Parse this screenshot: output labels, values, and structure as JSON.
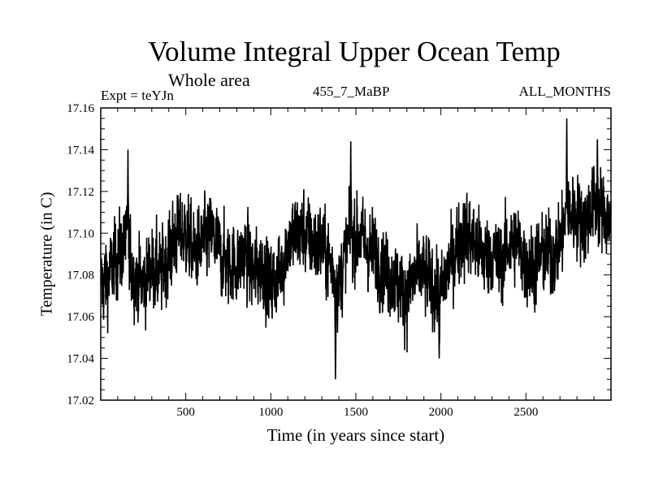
{
  "chart_data": {
    "type": "line",
    "title": "Volume Integral Upper Ocean Temp",
    "subtitle": "Whole area",
    "annotations": {
      "left": "Expt = teYJn",
      "center": "455_7_MaBP",
      "right": "ALL_MONTHS"
    },
    "xlabel": "Time (in years since start)",
    "ylabel": "Temperature (in C)",
    "xlim": [
      0,
      3000
    ],
    "ylim": [
      17.02,
      17.16
    ],
    "xticks": [
      500,
      1000,
      1500,
      2000,
      2500
    ],
    "xtick_labels": [
      "500",
      "1000",
      "1500",
      "2000",
      "2500"
    ],
    "yticks": [
      17.02,
      17.04,
      17.06,
      17.08,
      17.1,
      17.12,
      17.14,
      17.16
    ],
    "ytick_labels": [
      "17.02",
      "17.04",
      "17.06",
      "17.08",
      "17.10",
      "17.12",
      "17.14",
      "17.16"
    ],
    "grid": false,
    "series": [
      {
        "name": "Volume Integral Upper Ocean Temp",
        "color": "#000000",
        "x_start": 1,
        "x_step": 1,
        "points_approx": 3000,
        "anchors_x": [
          0,
          50,
          100,
          150,
          200,
          250,
          300,
          350,
          400,
          450,
          500,
          550,
          600,
          650,
          700,
          750,
          800,
          850,
          900,
          950,
          1000,
          1050,
          1100,
          1150,
          1200,
          1250,
          1300,
          1350,
          1400,
          1450,
          1500,
          1550,
          1600,
          1650,
          1700,
          1750,
          1800,
          1850,
          1900,
          1950,
          2000,
          2050,
          2100,
          2150,
          2200,
          2250,
          2300,
          2350,
          2400,
          2450,
          2500,
          2550,
          2600,
          2650,
          2700,
          2750,
          2800,
          2850,
          2900,
          2950,
          3000
        ],
        "anchors_mean": [
          17.075,
          17.08,
          17.09,
          17.095,
          17.08,
          17.075,
          17.085,
          17.08,
          17.09,
          17.1,
          17.1,
          17.09,
          17.095,
          17.1,
          17.09,
          17.085,
          17.085,
          17.09,
          17.08,
          17.085,
          17.075,
          17.08,
          17.095,
          17.1,
          17.1,
          17.095,
          17.095,
          17.085,
          17.075,
          17.095,
          17.1,
          17.095,
          17.09,
          17.085,
          17.08,
          17.075,
          17.07,
          17.08,
          17.08,
          17.075,
          17.07,
          17.085,
          17.095,
          17.1,
          17.095,
          17.09,
          17.09,
          17.085,
          17.095,
          17.095,
          17.085,
          17.085,
          17.09,
          17.09,
          17.095,
          17.11,
          17.11,
          17.105,
          17.115,
          17.11,
          17.105
        ],
        "notable_points": [
          {
            "x": 160,
            "y": 17.14
          },
          {
            "x": 1380,
            "y": 17.03
          },
          {
            "x": 1470,
            "y": 17.144
          },
          {
            "x": 1990,
            "y": 17.04
          },
          {
            "x": 2740,
            "y": 17.155
          },
          {
            "x": 2920,
            "y": 17.145
          }
        ],
        "noise_amplitude": 0.012
      }
    ]
  }
}
